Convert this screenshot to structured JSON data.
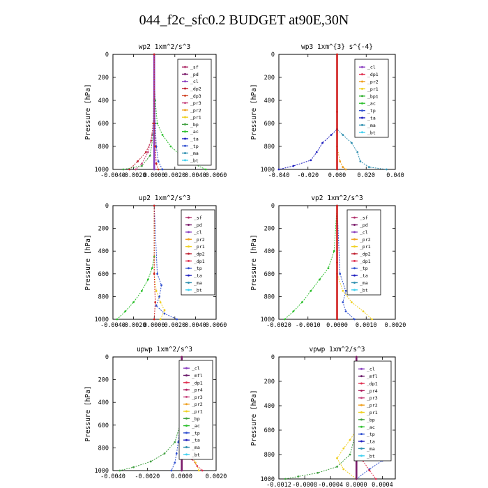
{
  "page_title": "044_f2c_sfc0.2  BUDGET at90E,30N",
  "colors": {
    "sf": "#b0306a",
    "pd": "#7a1a6a",
    "cl": "#8a3fc0",
    "dp2": "#c02030",
    "dp3": "#d04020",
    "pr3": "#c84880",
    "pr2": "#f0a020",
    "pr1": "#f0d020",
    "bp": "#40a040",
    "ac": "#30c030",
    "ta": "#2020c0",
    "tp": "#3050d0",
    "ma": "#3090b0",
    "bt": "#40d0f0",
    "mfl": "#6a1a6a",
    "pr4": "#b02060",
    "dp1": "#e03050",
    "bp1": "#30b030",
    "red": "#d02020"
  },
  "chart_data": [
    {
      "type": "line",
      "title": "wp2   1xm^2/s^3",
      "ylabel": "Pressure [hPa]",
      "xlim": [
        -0.004,
        0.006
      ],
      "ylim": [
        1000,
        0
      ],
      "xticks": [
        "-0.0040",
        "-0.0020",
        "0.0000",
        "0.0020",
        "0.0040",
        "0.0060"
      ],
      "yticks": [
        "0",
        "200",
        "400",
        "600",
        "800",
        "1000"
      ],
      "legend": [
        "_sf",
        "_pd",
        "_cl",
        "_dp2",
        "_dp3",
        "_pr3",
        "_pr2",
        "_pr1",
        "_bp",
        "_ac",
        "_ta",
        "_tp",
        "_ma",
        "_bt"
      ],
      "legend_colors": [
        "sf",
        "pd",
        "cl",
        "dp2",
        "dp3",
        "pr3",
        "pr2",
        "pr1",
        "bp",
        "ac",
        "ta",
        "tp",
        "ma",
        "bt"
      ],
      "series": [
        {
          "color": "ac",
          "x": [
            0.0,
            0.0,
            0.0001,
            0.0003,
            0.0008,
            0.0016,
            0.0026,
            0.0038,
            0.005
          ],
          "y": [
            0,
            200,
            400,
            600,
            700,
            800,
            880,
            950,
            1000
          ]
        },
        {
          "color": "dp2",
          "x": [
            0.0,
            0.0,
            -0.0001,
            -0.0003,
            -0.0008,
            -0.0016,
            -0.0024
          ],
          "y": [
            0,
            400,
            600,
            750,
            850,
            930,
            1000
          ]
        },
        {
          "color": "pr3",
          "x": [
            0.0,
            0.0,
            -0.0002,
            -0.0006,
            -0.0012,
            -0.0018
          ],
          "y": [
            0,
            500,
            700,
            850,
            950,
            1000
          ]
        },
        {
          "color": "tp",
          "x": [
            0.0,
            0.0001,
            0.0002,
            0.0004,
            0.0008
          ],
          "y": [
            0,
            600,
            800,
            930,
            1000
          ]
        },
        {
          "color": "bp",
          "x": [
            0.0,
            -0.0001,
            -0.0004,
            -0.0012,
            -0.003
          ],
          "y": [
            0,
            700,
            880,
            970,
            1000
          ]
        },
        {
          "color": "cl",
          "x": [
            0.0,
            0.0,
            0.0,
            0.0
          ],
          "y": [
            0,
            400,
            800,
            1000
          ]
        },
        {
          "color": "red",
          "x": [
            0.0,
            0.0,
            0.0001,
            0.0002,
            0.0004
          ],
          "y": [
            0,
            600,
            800,
            950,
            1000
          ]
        }
      ]
    },
    {
      "type": "line",
      "title": "wp3   1xm^{3} s^{-4}",
      "ylabel": "Pressure [hPa]",
      "xlim": [
        -0.04,
        0.04
      ],
      "ylim": [
        1000,
        0
      ],
      "xticks": [
        "-0.040",
        "-0.020",
        "0.000",
        "0.020",
        "0.040"
      ],
      "yticks": [
        "0",
        "200",
        "400",
        "600",
        "800",
        "1000"
      ],
      "legend": [
        "_cl",
        "_dp1",
        "_pr2",
        "_pr1",
        "_bp1",
        "_ac",
        "_tp",
        "_ta",
        "_ma",
        "_bt"
      ],
      "legend_colors": [
        "cl",
        "dp1",
        "pr2",
        "pr1",
        "bp1",
        "ac",
        "tp",
        "ta",
        "ma",
        "bt"
      ],
      "series": [
        {
          "color": "ma",
          "x": [
            0.0,
            0.0,
            0.004,
            0.01,
            0.014,
            0.016,
            0.022,
            0.034
          ],
          "y": [
            0,
            650,
            700,
            770,
            850,
            930,
            980,
            1000
          ]
        },
        {
          "color": "ta",
          "x": [
            0.0,
            0.0,
            -0.004,
            -0.01,
            -0.014,
            -0.018,
            -0.03,
            -0.04
          ],
          "y": [
            0,
            650,
            700,
            770,
            850,
            920,
            970,
            1000
          ]
        },
        {
          "color": "pr2",
          "x": [
            0.0,
            0.0,
            0.002,
            0.004,
            0.006
          ],
          "y": [
            0,
            800,
            930,
            980,
            1000
          ]
        },
        {
          "color": "red",
          "x": [
            0.0,
            0.0,
            0.0
          ],
          "y": [
            0,
            500,
            1000
          ]
        }
      ]
    },
    {
      "type": "line",
      "title": "up2   1xm^2/s^3",
      "ylabel": "Pressure [hPa]",
      "xlim": [
        -0.004,
        0.006
      ],
      "ylim": [
        1000,
        0
      ],
      "xticks": [
        "-0.0040",
        "-0.0020",
        "0.0000",
        "0.0020",
        "0.0040",
        "0.0060"
      ],
      "yticks": [
        "0",
        "200",
        "400",
        "600",
        "800",
        "1000"
      ],
      "legend": [
        "_sf",
        "_pd",
        "_cl",
        "_pr2",
        "_pr1",
        "_dp2",
        "_dp1",
        "_tp",
        "_ta",
        "_ma",
        "_bt"
      ],
      "legend_colors": [
        "sf",
        "pd",
        "cl",
        "pr2",
        "pr1",
        "dp2",
        "dp1",
        "tp",
        "ta",
        "ma",
        "bt"
      ],
      "series": [
        {
          "color": "ac",
          "x": [
            0.0,
            0.0,
            -0.0002,
            -0.0006,
            -0.0012,
            -0.002,
            -0.0028,
            -0.0036
          ],
          "y": [
            0,
            450,
            550,
            650,
            750,
            850,
            930,
            1000
          ]
        },
        {
          "color": "pr1",
          "x": [
            0.0,
            0.0,
            0.0002,
            0.0006,
            0.001,
            0.0006
          ],
          "y": [
            0,
            600,
            750,
            850,
            920,
            1000
          ]
        },
        {
          "color": "tp",
          "x": [
            0.0,
            0.0003,
            0.0007,
            0.0005,
            0.0002,
            0.001,
            0.0022
          ],
          "y": [
            0,
            600,
            700,
            800,
            880,
            950,
            1000
          ]
        },
        {
          "color": "red",
          "x": [
            0.0,
            0.0,
            0.0001,
            0.0
          ],
          "y": [
            0,
            600,
            850,
            1000
          ]
        }
      ]
    },
    {
      "type": "line",
      "title": "vp2   1xm^2/s^3",
      "ylabel": "Pressure [hPa]",
      "xlim": [
        -0.002,
        0.002
      ],
      "ylim": [
        1000,
        0
      ],
      "xticks": [
        "-0.0020",
        "-0.0010",
        "0.0000",
        "0.0010",
        "0.0020"
      ],
      "yticks": [
        "0",
        "200",
        "400",
        "600",
        "800",
        "1000"
      ],
      "legend": [
        "_sf",
        "_pd",
        "_cl",
        "_pr2",
        "_pr1",
        "_dp2",
        "_dp1",
        "_tp",
        "_ta",
        "_ma",
        "_bt"
      ],
      "legend_colors": [
        "sf",
        "pd",
        "cl",
        "pr2",
        "pr1",
        "dp2",
        "dp1",
        "tp",
        "ta",
        "ma",
        "bt"
      ],
      "series": [
        {
          "color": "ac",
          "x": [
            0.0,
            -0.0001,
            -0.0003,
            -0.0006,
            -0.0009,
            -0.0012,
            -0.0015,
            -0.0018
          ],
          "y": [
            0,
            400,
            550,
            650,
            750,
            850,
            930,
            1000
          ]
        },
        {
          "color": "pr1",
          "x": [
            0.0,
            0.0,
            0.0002,
            0.0005,
            0.0009,
            0.0012
          ],
          "y": [
            0,
            600,
            750,
            850,
            930,
            1000
          ]
        },
        {
          "color": "tp",
          "x": [
            0.0,
            0.0001,
            0.0003,
            0.0002,
            0.0003,
            0.0006
          ],
          "y": [
            0,
            600,
            750,
            850,
            930,
            1000
          ]
        },
        {
          "color": "red",
          "x": [
            0.0,
            0.0,
            0.0
          ],
          "y": [
            0,
            500,
            1000
          ]
        }
      ]
    },
    {
      "type": "line",
      "title": "upwp   1xm^2/s^3",
      "ylabel": "Pressure [hPa]",
      "xlim": [
        -0.004,
        0.002
      ],
      "ylim": [
        1000,
        0
      ],
      "xticks": [
        "-0.0040",
        "-0.0020",
        "0.0000",
        "0.0020"
      ],
      "yticks": [
        "0",
        "200",
        "400",
        "600",
        "800",
        "1000"
      ],
      "legend": [
        "_cl",
        "_mfl",
        "_dp1",
        "_pr4",
        "_pr3",
        "_pr2",
        "_pr1",
        "_bp",
        "_ac",
        "_tp",
        "_ta",
        "_ma",
        "_bt"
      ],
      "legend_colors": [
        "cl",
        "mfl",
        "dp1",
        "pr4",
        "pr3",
        "pr2",
        "pr1",
        "bp",
        "ac",
        "tp",
        "ta",
        "ma",
        "bt"
      ],
      "series": [
        {
          "color": "bp",
          "x": [
            0.0,
            0.0,
            -0.0001,
            -0.0004,
            -0.001,
            -0.0018,
            -0.0028,
            -0.0036
          ],
          "y": [
            0,
            400,
            600,
            750,
            850,
            920,
            970,
            1000
          ]
        },
        {
          "color": "tp",
          "x": [
            0.0,
            -0.0001,
            -0.0002,
            -0.0003,
            -0.0004,
            -0.0006
          ],
          "y": [
            0,
            600,
            750,
            850,
            930,
            1000
          ]
        },
        {
          "color": "pr1",
          "x": [
            0.0,
            0.0001,
            0.0003,
            0.0005,
            0.0008,
            0.001
          ],
          "y": [
            0,
            600,
            750,
            850,
            930,
            1000
          ]
        },
        {
          "color": "dp1",
          "x": [
            0.0,
            0.0001,
            0.0003,
            0.0006,
            0.0009,
            0.0012
          ],
          "y": [
            0,
            700,
            830,
            900,
            960,
            1000
          ]
        },
        {
          "color": "pd",
          "x": [
            0.0,
            0.0,
            0.0
          ],
          "y": [
            0,
            500,
            1000
          ]
        }
      ]
    },
    {
      "type": "line",
      "title": "vpwp   1xm^2/s^3",
      "ylabel": "Pressure [hPa]",
      "xlim": [
        -0.0012,
        0.0006
      ],
      "ylim": [
        1000,
        0
      ],
      "xticks": [
        "-0.0012",
        "-0.0008",
        "-0.0004",
        "0.0000",
        "0.0004"
      ],
      "yticks": [
        "0",
        "200",
        "400",
        "600",
        "800",
        "1000"
      ],
      "legend": [
        "_cl",
        "_mfl",
        "_dp1",
        "_pr4",
        "_pr3",
        "_pr2",
        "_pr1",
        "_bp",
        "_ac",
        "_tp",
        "_ta",
        "_ma",
        "_bt"
      ],
      "legend_colors": [
        "cl",
        "mfl",
        "dp1",
        "pr4",
        "pr3",
        "pr2",
        "pr1",
        "bp",
        "ac",
        "tp",
        "ta",
        "ma",
        "bt"
      ],
      "series": [
        {
          "color": "tp",
          "x": [
            0.0,
            0.0,
            0.0001,
            0.0003,
            0.0005,
            0.0004,
            0.0002,
            0.0
          ],
          "y": [
            0,
            600,
            650,
            700,
            780,
            850,
            920,
            1000
          ]
        },
        {
          "color": "pr1",
          "x": [
            0.0,
            0.0,
            -0.0001,
            -0.0002,
            -0.0003,
            -0.0002,
            0.0
          ],
          "y": [
            0,
            600,
            680,
            750,
            830,
            920,
            1000
          ]
        },
        {
          "color": "bp",
          "x": [
            0.0,
            0.0,
            -0.0001,
            -0.0003,
            -0.0006,
            -0.0009,
            -0.0011
          ],
          "y": [
            0,
            600,
            800,
            900,
            950,
            980,
            1000
          ]
        },
        {
          "color": "dp1",
          "x": [
            0.0,
            0.0001,
            0.0002,
            0.0001,
            0.0002,
            0.0003
          ],
          "y": [
            0,
            650,
            750,
            850,
            930,
            1000
          ]
        },
        {
          "color": "pd",
          "x": [
            0.0,
            0.0,
            0.0
          ],
          "y": [
            0,
            500,
            1000
          ]
        }
      ]
    }
  ]
}
